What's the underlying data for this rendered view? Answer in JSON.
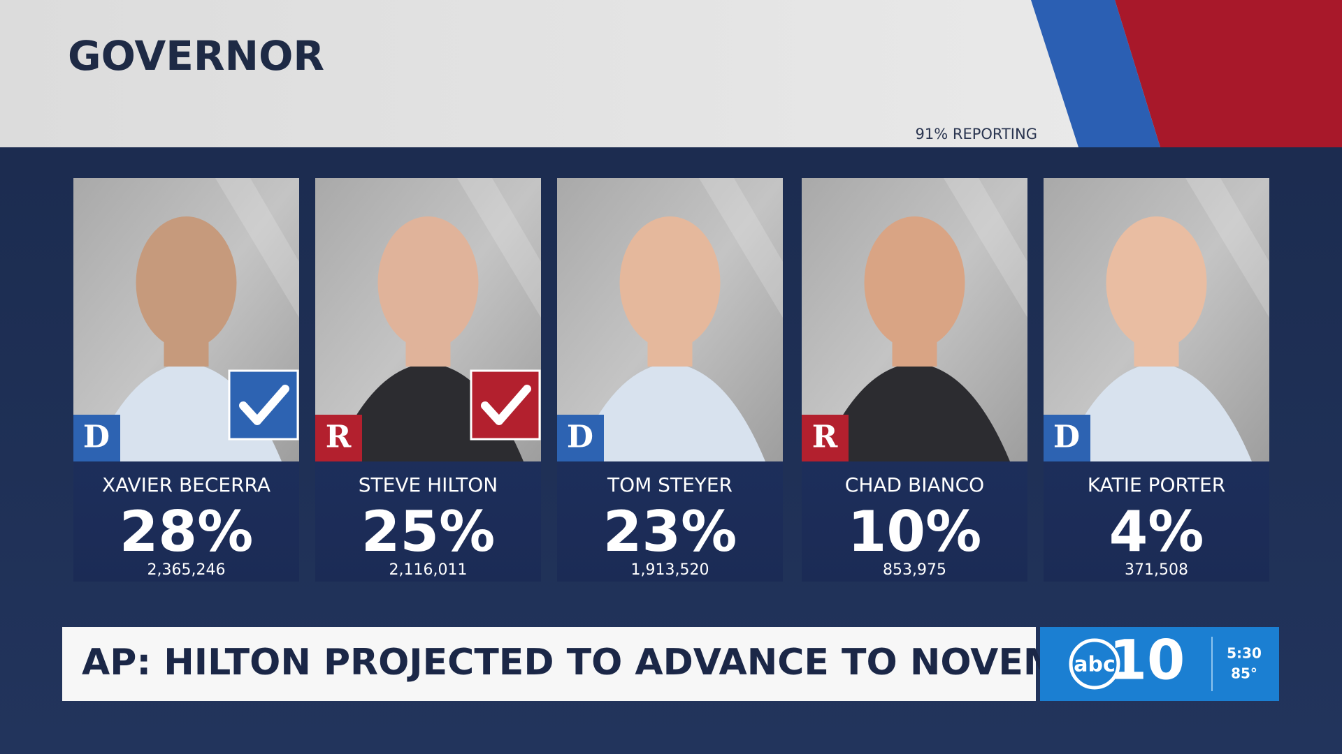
{
  "header": {
    "title": "GOVERNOR",
    "reporting": "91% REPORTING"
  },
  "candidates": [
    {
      "party": "D",
      "name": "XAVIER BECERRA",
      "percent": "28%",
      "votes": "2,365,246",
      "projected": true
    },
    {
      "party": "R",
      "name": "STEVE HILTON",
      "percent": "25%",
      "votes": "2,116,011",
      "projected": true
    },
    {
      "party": "D",
      "name": "TOM STEYER",
      "percent": "23%",
      "votes": "1,913,520",
      "projected": false
    },
    {
      "party": "R",
      "name": "CHAD BIANCO",
      "percent": "10%",
      "votes": "853,975",
      "projected": false
    },
    {
      "party": "D",
      "name": "KATIE PORTER",
      "percent": "4%",
      "votes": "371,508",
      "projected": false
    }
  ],
  "ticker": {
    "headline": "AP: HILTON PROJECTED TO ADVANCE TO NOVEMBER",
    "logo_abc": "abc",
    "logo_number": "10",
    "time": "5:30",
    "temperature": "85°"
  }
}
